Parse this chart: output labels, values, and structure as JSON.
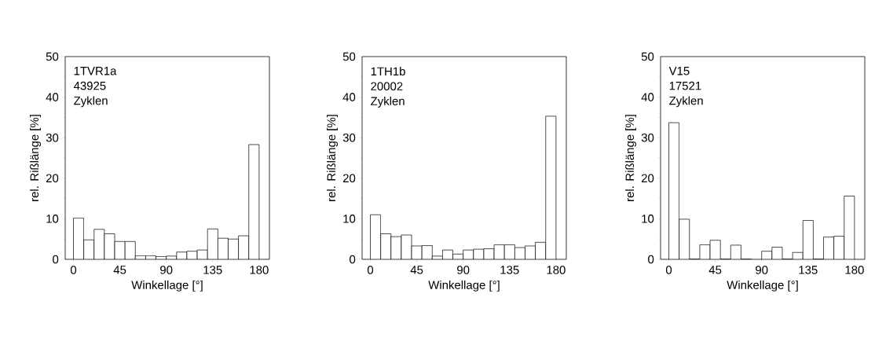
{
  "chart_data": [
    {
      "type": "histogram",
      "bins": [
        0,
        10,
        20,
        30,
        40,
        50,
        60,
        70,
        80,
        90,
        100,
        110,
        120,
        130,
        140,
        150,
        160,
        170,
        180
      ],
      "values": [
        10.2,
        4.8,
        7.4,
        6.3,
        4.4,
        4.4,
        0.9,
        0.9,
        0.7,
        0.8,
        1.8,
        2.0,
        2.3,
        7.5,
        5.2,
        5.0,
        5.8,
        28.3
      ],
      "color": "#ffffff",
      "xlabel": "Winkellage [°]",
      "ylabel": "rel. Rißlänge [%]",
      "annotations": [
        "1TVR1a",
        "43925",
        "Zyklen"
      ],
      "xlim": [
        -8,
        190
      ],
      "ylim": [
        0,
        50
      ],
      "xticks": [
        0,
        45,
        90,
        135,
        180
      ],
      "yticks": [
        0,
        10,
        20,
        30,
        40,
        50
      ]
    },
    {
      "type": "histogram",
      "bins": [
        0,
        10,
        20,
        30,
        40,
        50,
        60,
        70,
        80,
        90,
        100,
        110,
        120,
        130,
        140,
        150,
        160,
        170,
        180
      ],
      "values": [
        11.0,
        6.3,
        5.6,
        6.0,
        3.3,
        3.4,
        0.8,
        2.3,
        1.3,
        2.3,
        2.5,
        2.6,
        3.6,
        3.6,
        2.9,
        3.3,
        4.2,
        35.3
      ],
      "color": "#ffffff",
      "xlabel": "Winkellage [°]",
      "ylabel": "rel. Rißlänge [%]",
      "annotations": [
        "1TH1b",
        "20002",
        "Zyklen"
      ],
      "xlim": [
        -8,
        190
      ],
      "ylim": [
        0,
        50
      ],
      "xticks": [
        0,
        45,
        90,
        135,
        180
      ],
      "yticks": [
        0,
        10,
        20,
        30,
        40,
        50
      ]
    },
    {
      "type": "histogram",
      "bins": [
        0,
        10,
        20,
        30,
        40,
        50,
        60,
        70,
        80,
        90,
        100,
        110,
        120,
        130,
        140,
        150,
        160,
        170,
        180
      ],
      "values": [
        33.7,
        9.9,
        0,
        3.6,
        4.7,
        0,
        3.5,
        0,
        null,
        2.0,
        3.0,
        0,
        1.7,
        9.6,
        0,
        5.5,
        5.7,
        15.6
      ],
      "color": "#ffffff",
      "xlabel": "Winkellage [°]",
      "ylabel": "rel. Rißlänge [%]",
      "annotations": [
        "V15",
        "17521",
        "Zyklen"
      ],
      "xlim": [
        -8,
        190
      ],
      "ylim": [
        0,
        50
      ],
      "xticks": [
        0,
        45,
        90,
        135,
        180
      ],
      "yticks": [
        0,
        10,
        20,
        30,
        40,
        50
      ]
    }
  ]
}
